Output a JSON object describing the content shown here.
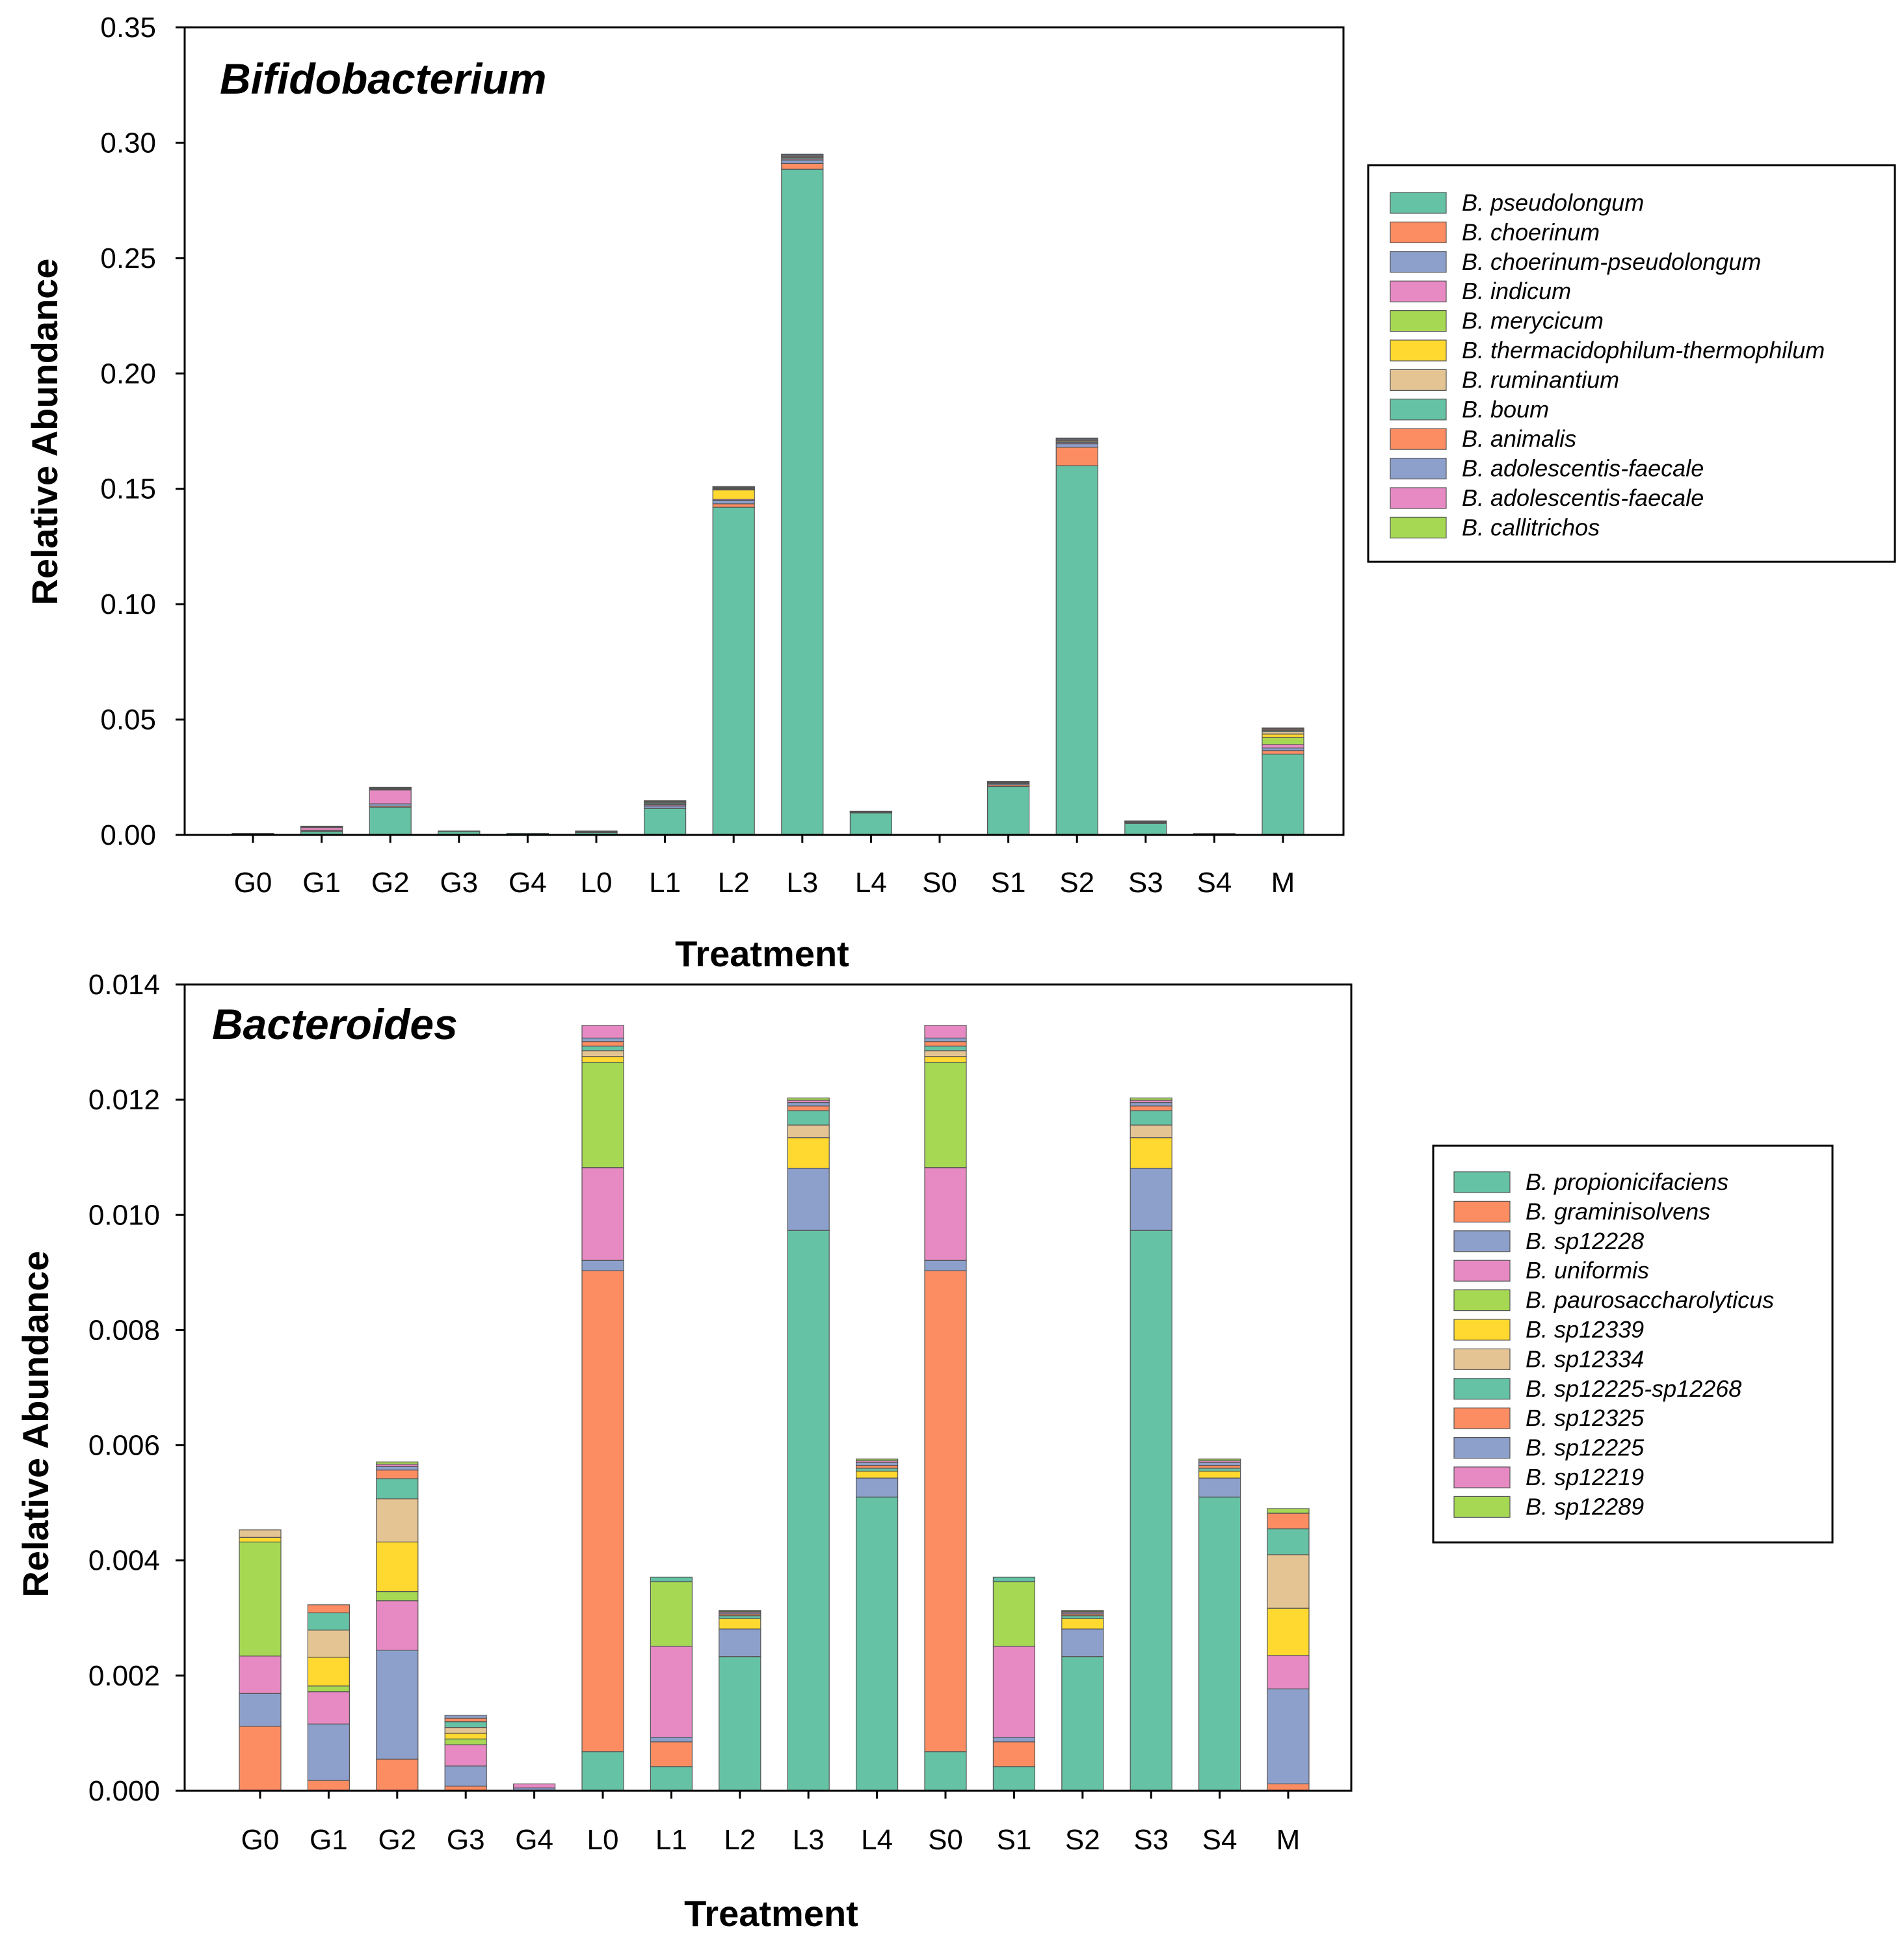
{
  "chart_data": [
    {
      "type": "bar",
      "stacked": true,
      "title": "Bifidobacterium",
      "xlabel": "Treatment",
      "ylabel": "Relative Abundance",
      "ylim": [
        0,
        0.35
      ],
      "yticks": [
        "0.00",
        "0.05",
        "0.10",
        "0.15",
        "0.20",
        "0.25",
        "0.30",
        "0.35"
      ],
      "grid": false,
      "legend_position": "right",
      "categories": [
        "G0",
        "G1",
        "G2",
        "G3",
        "G4",
        "L0",
        "L1",
        "L2",
        "L3",
        "L4",
        "S0",
        "S1",
        "S2",
        "S3",
        "S4",
        "M"
      ],
      "series": [
        {
          "name": "B. pseudolongum",
          "color": "#66c2a5",
          "values": [
            0.0003,
            0.0015,
            0.012,
            0.0015,
            0.0007,
            0.001,
            0.0115,
            0.142,
            0.2885,
            0.0095,
            0.0001,
            0.021,
            0.16,
            0.005,
            0.0006,
            0.035
          ]
        },
        {
          "name": "B. choerinum",
          "color": "#fc8d62",
          "values": [
            0,
            0.0003,
            0.0005,
            0,
            0,
            0,
            0,
            0.0015,
            0.0025,
            0.0003,
            0,
            0.0007,
            0.008,
            0.0003,
            0,
            0.0015
          ]
        },
        {
          "name": "B. choerinum-pseudolongum",
          "color": "#8da0cb",
          "values": [
            0,
            0.0002,
            0.001,
            0.0002,
            0,
            0.0003,
            0.001,
            0.0015,
            0.0015,
            0.0002,
            0,
            0.0005,
            0.0015,
            0.0002,
            0,
            0.0012
          ]
        },
        {
          "name": "B. indicum",
          "color": "#e78ac3",
          "values": [
            0,
            0.0012,
            0.006,
            0,
            0,
            0,
            0.0005,
            0.0005,
            0.0005,
            0,
            0,
            0,
            0.0005,
            0,
            0,
            0.0015
          ]
        },
        {
          "name": "B. merycicum",
          "color": "#a6d854",
          "values": [
            0.0002,
            0,
            0,
            0,
            0,
            0.0003,
            0,
            0,
            0,
            0,
            0,
            0,
            0,
            0,
            0,
            0.003
          ]
        },
        {
          "name": "B. thermacidophilum-thermophilum",
          "color": "#ffd92f",
          "values": [
            0,
            0,
            0,
            0,
            0,
            0,
            0.0003,
            0.004,
            0,
            0,
            0,
            0,
            0,
            0,
            0,
            0.0015
          ]
        },
        {
          "name": "B. ruminantium",
          "color": "#e5c494",
          "values": [
            0.0002,
            0,
            0,
            0,
            0,
            0,
            0,
            0.0003,
            0,
            0,
            0,
            0,
            0,
            0,
            0,
            0.001
          ]
        },
        {
          "name": "B. boum",
          "color": "#66c2a5",
          "values": [
            0,
            0.0002,
            0.0003,
            0,
            0,
            0.0001,
            0.0005,
            0.0003,
            0.0005,
            0.0001,
            0,
            0.0003,
            0.0005,
            0.0002,
            0,
            0.0005
          ]
        },
        {
          "name": "B. animalis",
          "color": "#fc8d62",
          "values": [
            0,
            0.0002,
            0.0003,
            0,
            0,
            0,
            0.0004,
            0.0003,
            0.0005,
            0.0001,
            0,
            0.0003,
            0.0005,
            0.0002,
            0,
            0.0005
          ]
        },
        {
          "name": "B. adolescentis-faecale",
          "color": "#8da0cb",
          "values": [
            0,
            0.0001,
            0.0002,
            0,
            0,
            0,
            0.0003,
            0.0002,
            0.0005,
            0.0001,
            0,
            0.0002,
            0.0005,
            0.0001,
            0,
            0.0003
          ]
        },
        {
          "name": "B. adolescentis-faecale",
          "color": "#e78ac3",
          "values": [
            0,
            0.0001,
            0.0002,
            0,
            0,
            0,
            0.0002,
            0.0002,
            0.0003,
            0,
            0,
            0.0001,
            0.0003,
            0.0001,
            0,
            0.0002
          ]
        },
        {
          "name": "B. callitrichos",
          "color": "#a6d854",
          "values": [
            0,
            0,
            0.0002,
            0,
            0,
            0,
            0.0002,
            0.0002,
            0.0002,
            0,
            0,
            0.0001,
            0.0002,
            0,
            0,
            0.0002
          ]
        }
      ]
    },
    {
      "type": "bar",
      "stacked": true,
      "title": "Bacteroides",
      "xlabel": "Treatment",
      "ylabel": "Relative Abundance",
      "ylim": [
        0,
        0.014
      ],
      "yticks": [
        "0.000",
        "0.002",
        "0.004",
        "0.006",
        "0.008",
        "0.010",
        "0.012",
        "0.014"
      ],
      "grid": false,
      "legend_position": "right",
      "categories": [
        "G0",
        "G1",
        "G2",
        "G3",
        "G4",
        "L0",
        "L1",
        "L2",
        "L3",
        "L4",
        "S0",
        "S1",
        "S2",
        "S3",
        "S4",
        "M"
      ],
      "series": [
        {
          "name": "B. propionicifaciens",
          "color": "#66c2a5",
          "values": [
            0,
            0,
            0,
            0,
            0,
            0.00068,
            0.00042,
            0.00233,
            0.00973,
            0.0051,
            0.00068,
            0.00042,
            0.00233,
            0.00973,
            0.0051,
            0
          ]
        },
        {
          "name": "B. graminisolvens",
          "color": "#fc8d62",
          "values": [
            0.00112,
            0.00018,
            0.00055,
            8e-05,
            0,
            0.00835,
            0.00043,
            0,
            0,
            0,
            0.00835,
            0.00043,
            0,
            0,
            0,
            0.00012
          ]
        },
        {
          "name": "B. sp12228",
          "color": "#8da0cb",
          "values": [
            0.00057,
            0.00098,
            0.00189,
            0.00035,
            5e-05,
            0.00018,
            8e-05,
            0.00048,
            0.00108,
            0.00033,
            0.00018,
            8e-05,
            0.00048,
            0.00108,
            0.00033,
            0.00165
          ]
        },
        {
          "name": "B. uniformis",
          "color": "#e78ac3",
          "values": [
            0.00065,
            0.00056,
            0.00086,
            0.00037,
            7e-05,
            0.00161,
            0.00158,
            0,
            0,
            0,
            0.00161,
            0.00158,
            0,
            0,
            0,
            0.00058
          ]
        },
        {
          "name": "B. paurosaccharolyticus",
          "color": "#a6d854",
          "values": [
            0.00198,
            0.0001,
            0.00016,
            0.0001,
            0,
            0.00183,
            0.00112,
            0,
            0,
            0,
            0.00183,
            0.00112,
            0,
            0,
            0,
            0
          ]
        },
        {
          "name": "B. sp12339",
          "color": "#ffd92f",
          "values": [
            8e-05,
            0.0005,
            0.00086,
            0.0001,
            0,
            0.0001,
            0,
            0.00018,
            0.00053,
            0.00012,
            0.0001,
            0,
            0.00018,
            0.00053,
            0.00012,
            0.00082
          ]
        },
        {
          "name": "B. sp12334",
          "color": "#e5c494",
          "values": [
            0.00013,
            0.00047,
            0.00075,
            0.0001,
            0,
            0.0001,
            0,
            0,
            0.00022,
            0,
            0.0001,
            0,
            0,
            0.00022,
            0,
            0.00093
          ]
        },
        {
          "name": "B. sp12225-sp12268",
          "color": "#66c2a5",
          "values": [
            0,
            0.0003,
            0.00035,
            0.0001,
            0,
            8e-05,
            8e-05,
            5e-05,
            0.00025,
            5e-05,
            8e-05,
            8e-05,
            5e-05,
            0.00025,
            5e-05,
            0.00045
          ]
        },
        {
          "name": "B. sp12325",
          "color": "#fc8d62",
          "values": [
            0,
            0.00014,
            0.00015,
            6e-05,
            0,
            8e-05,
            0,
            3e-05,
            8e-05,
            5e-05,
            8e-05,
            0,
            3e-05,
            8e-05,
            5e-05,
            0.00027
          ]
        },
        {
          "name": "B. sp12225",
          "color": "#8da0cb",
          "values": [
            0,
            0,
            6e-05,
            5e-05,
            0,
            6e-05,
            0,
            2e-05,
            6e-05,
            5e-05,
            6e-05,
            0,
            2e-05,
            6e-05,
            5e-05,
            0
          ]
        },
        {
          "name": "B. sp12219",
          "color": "#e78ac3",
          "values": [
            0,
            0,
            4e-05,
            0,
            0,
            0.00022,
            0,
            2e-05,
            4e-05,
            3e-05,
            0.00022,
            0,
            2e-05,
            4e-05,
            3e-05,
            0
          ]
        },
        {
          "name": "B. sp12289",
          "color": "#a6d854",
          "values": [
            0,
            0,
            4e-05,
            0,
            0,
            0,
            0,
            2e-05,
            4e-05,
            3e-05,
            0,
            0,
            2e-05,
            4e-05,
            3e-05,
            8e-05
          ]
        }
      ]
    }
  ]
}
